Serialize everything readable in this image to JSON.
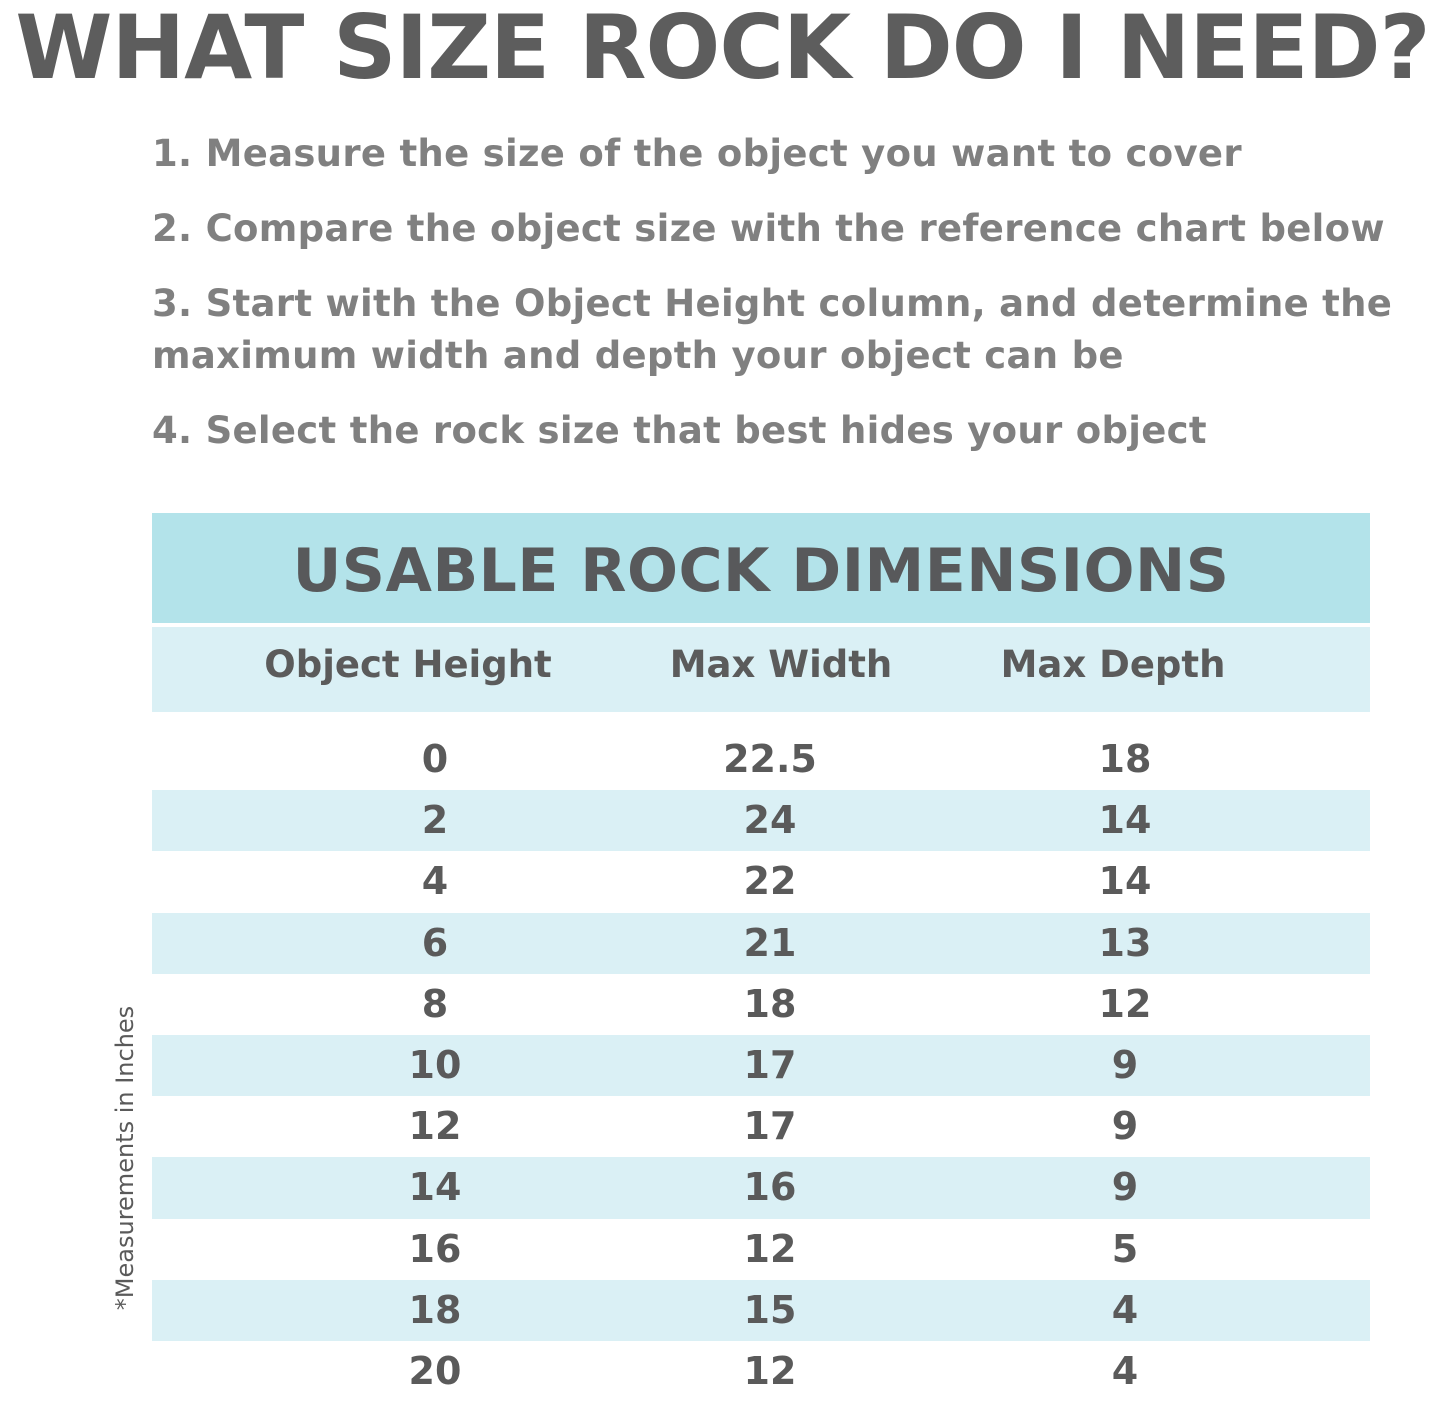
{
  "title": "WHAT SIZE ROCK DO I NEED?",
  "steps": [
    "1. Measure the size of the object you want to cover",
    "2. Compare the object size with the reference chart below",
    "3. Start with the Object Height column, and determine the maximum width and depth your object can be",
    "4. Select the rock size that best hides your object"
  ],
  "table": {
    "title": "USABLE ROCK DIMENSIONS",
    "headers": [
      "Object Height",
      "Max Width",
      "Max Depth"
    ],
    "rows": [
      [
        "0",
        "22.5",
        "18"
      ],
      [
        "2",
        "24",
        "14"
      ],
      [
        "4",
        "22",
        "14"
      ],
      [
        "6",
        "21",
        "13"
      ],
      [
        "8",
        "18",
        "12"
      ],
      [
        "10",
        "17",
        "9"
      ],
      [
        "12",
        "17",
        "9"
      ],
      [
        "14",
        "16",
        "9"
      ],
      [
        "16",
        "12",
        "5"
      ],
      [
        "18",
        "15",
        "4"
      ],
      [
        "20",
        "12",
        "4"
      ]
    ]
  },
  "note": "*Measurements in Inches",
  "colors": {
    "band": "#b3e3ea",
    "stripe": "#daf0f5",
    "text": "#5b5b5b"
  }
}
